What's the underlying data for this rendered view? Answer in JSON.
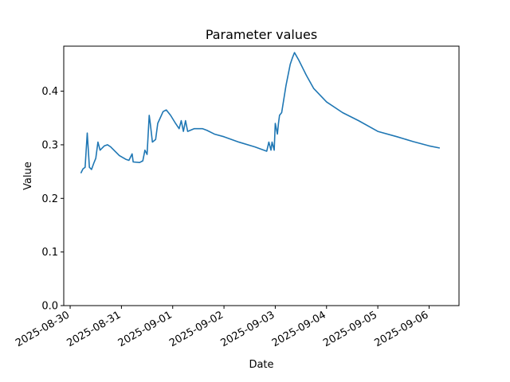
{
  "chart_data": {
    "type": "line",
    "title": "Parameter values",
    "x_label": "Date",
    "y_label": "Value",
    "x": [
      "2025-08-30T05:00",
      "2025-08-30T06:00",
      "2025-08-30T07:00",
      "2025-08-30T08:00",
      "2025-08-30T09:00",
      "2025-08-30T10:00",
      "2025-08-30T11:00",
      "2025-08-30T12:00",
      "2025-08-30T13:00",
      "2025-08-30T14:00",
      "2025-08-30T16:00",
      "2025-08-30T17:30",
      "2025-08-30T19:00",
      "2025-08-30T21:00",
      "2025-08-30T23:00",
      "2025-08-31T02:00",
      "2025-08-31T03:30",
      "2025-08-31T05:00",
      "2025-08-31T05:30",
      "2025-08-31T08:30",
      "2025-08-31T10:00",
      "2025-08-31T11:00",
      "2025-08-31T12:00",
      "2025-08-31T13:00",
      "2025-08-31T13:30",
      "2025-08-31T14:30",
      "2025-08-31T16:00",
      "2025-08-31T17:00",
      "2025-08-31T19:30",
      "2025-08-31T21:00",
      "2025-08-31T23:00",
      "2025-09-01T01:00",
      "2025-09-01T03:00",
      "2025-09-01T04:00",
      "2025-09-01T05:00",
      "2025-09-01T06:00",
      "2025-09-01T07:00",
      "2025-09-01T10:00",
      "2025-09-01T14:00",
      "2025-09-01T16:00",
      "2025-09-01T19:30",
      "2025-09-02T00:00",
      "2025-09-02T07:00",
      "2025-09-02T14:30",
      "2025-09-02T20:00",
      "2025-09-02T21:00",
      "2025-09-02T22:00",
      "2025-09-02T22:30",
      "2025-09-02T23:30",
      "2025-09-03T00:00",
      "2025-09-03T01:00",
      "2025-09-03T01:30",
      "2025-09-03T02:00",
      "2025-09-03T03:00",
      "2025-09-03T05:00",
      "2025-09-03T07:00",
      "2025-09-03T08:00",
      "2025-09-03T09:00",
      "2025-09-03T11:00",
      "2025-09-03T14:30",
      "2025-09-03T18:00",
      "2025-09-04T00:00",
      "2025-09-04T07:30",
      "2025-09-04T15:00",
      "2025-09-05T00:00",
      "2025-09-05T09:00",
      "2025-09-05T16:30",
      "2025-09-06T00:00",
      "2025-09-06T05:00"
    ],
    "series": [
      {
        "name": "Value",
        "color": "#1f77b4",
        "values": [
          0.247,
          0.255,
          0.258,
          0.322,
          0.258,
          0.254,
          0.265,
          0.275,
          0.305,
          0.29,
          0.298,
          0.3,
          0.296,
          0.288,
          0.28,
          0.273,
          0.271,
          0.283,
          0.268,
          0.267,
          0.27,
          0.29,
          0.282,
          0.355,
          0.34,
          0.305,
          0.31,
          0.34,
          0.362,
          0.365,
          0.355,
          0.342,
          0.33,
          0.345,
          0.325,
          0.345,
          0.325,
          0.33,
          0.33,
          0.327,
          0.32,
          0.315,
          0.305,
          0.296,
          0.288,
          0.305,
          0.29,
          0.305,
          0.29,
          0.34,
          0.32,
          0.34,
          0.355,
          0.36,
          0.41,
          0.45,
          0.462,
          0.472,
          0.458,
          0.43,
          0.405,
          0.38,
          0.36,
          0.345,
          0.325,
          0.315,
          0.306,
          0.298,
          0.294
        ]
      }
    ],
    "xlim": [
      "2025-08-29T21:00",
      "2025-09-06T14:00"
    ],
    "xticks": [
      "2025-08-30",
      "2025-08-31",
      "2025-09-01",
      "2025-09-02",
      "2025-09-03",
      "2025-09-04",
      "2025-09-05",
      "2025-09-06"
    ],
    "ylim": [
      0,
      0.484
    ],
    "yticks": [
      {
        "value": 0,
        "label": "0.0"
      },
      0.1,
      0.2,
      0.3,
      0.4
    ]
  }
}
